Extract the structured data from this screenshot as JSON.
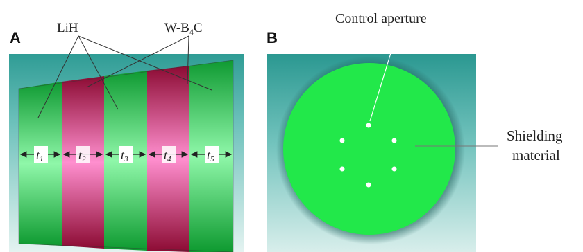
{
  "panel_a": {
    "letter": "A",
    "label_lih": "LiH",
    "label_wb4c_prefix": "W-B",
    "label_wb4c_sub": "4",
    "label_wb4c_suffix": "C",
    "layers": [
      {
        "t": "t",
        "sub": "1",
        "material": "LiH"
      },
      {
        "t": "t",
        "sub": "2",
        "material": "W-B4C"
      },
      {
        "t": "t",
        "sub": "3",
        "material": "LiH"
      },
      {
        "t": "t",
        "sub": "4",
        "material": "W-B4C"
      },
      {
        "t": "t",
        "sub": "5",
        "material": "LiH"
      }
    ]
  },
  "panel_b": {
    "letter": "B",
    "label_aperture": "Control aperture",
    "label_shielding_1": "Shielding",
    "label_shielding_2": "material"
  },
  "colors": {
    "teal": "#3aa7a0",
    "green": "#22e04a",
    "crimson": "#a0103c",
    "pink": "#ff88c8"
  }
}
